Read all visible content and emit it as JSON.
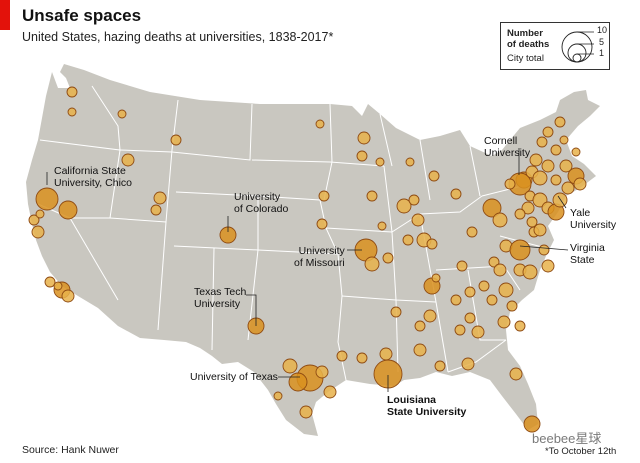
{
  "title": "Unsafe spaces",
  "subtitle": "United States, hazing deaths at universities, 1838-2017*",
  "legend": {
    "title_line1": "Number",
    "title_line2": "of deaths",
    "subtitle": "City total",
    "labels": [
      "10",
      "5",
      "1"
    ]
  },
  "labels": {
    "california_state_chico": [
      "California State",
      "University, Chico"
    ],
    "colorado": [
      "University",
      "of Colorado"
    ],
    "missouri": [
      "University",
      "of Missouri"
    ],
    "texas_tech": [
      "Texas Tech",
      "University"
    ],
    "texas": "University of Texas",
    "lsu": [
      "Louisiana",
      "State University"
    ],
    "cornell": [
      "Cornell",
      "University"
    ],
    "yale": [
      "Yale",
      "University"
    ],
    "virginia_state": [
      "Virginia",
      "State"
    ]
  },
  "source": "Source: Hank Nuwer",
  "footnote": "*To October 12th",
  "watermark": "beebee星球",
  "colors": {
    "land": "#c9c7c0",
    "border": "#ffffff",
    "bubble_fill": "#d9901f",
    "bubble_fill_light": "#e8b24a",
    "bubble_stroke": "#8e4a12",
    "accent": "#e3120b"
  },
  "map_data": {
    "type": "proportional-symbol",
    "legend_scale_deaths": [
      10,
      5,
      1
    ],
    "cities": [
      {
        "name": "Chico, CA",
        "deaths": 3
      },
      {
        "name": "Austin, TX",
        "deaths": 9
      },
      {
        "name": "Baton Rouge, LA",
        "deaths": 8
      },
      {
        "name": "Ithaca, NY",
        "deaths": 4
      },
      {
        "name": "New Haven, CT",
        "deaths": 2
      },
      {
        "name": "Petersburg, VA",
        "deaths": 4
      },
      {
        "name": "Columbia, MO",
        "deaths": 4
      },
      {
        "name": "Boulder, CO",
        "deaths": 2
      },
      {
        "name": "Lubbock, TX",
        "deaths": 2
      }
    ]
  }
}
